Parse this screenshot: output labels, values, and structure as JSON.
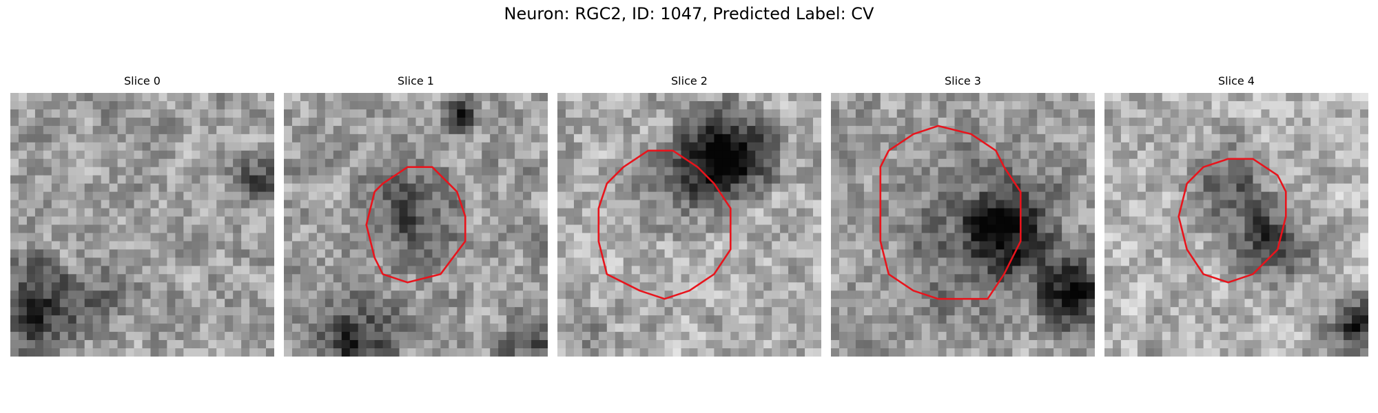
{
  "figure": {
    "title": "Neuron: RGC2, ID: 1047, Predicted Label: CV",
    "panels": [
      {
        "title": "Slice 0",
        "has_contour": false
      },
      {
        "title": "Slice 1",
        "has_contour": true
      },
      {
        "title": "Slice 2",
        "has_contour": true
      },
      {
        "title": "Slice 3",
        "has_contour": true
      },
      {
        "title": "Slice 4",
        "has_contour": true
      }
    ],
    "contour_color": "#e8141c",
    "colormap": "gray"
  }
}
